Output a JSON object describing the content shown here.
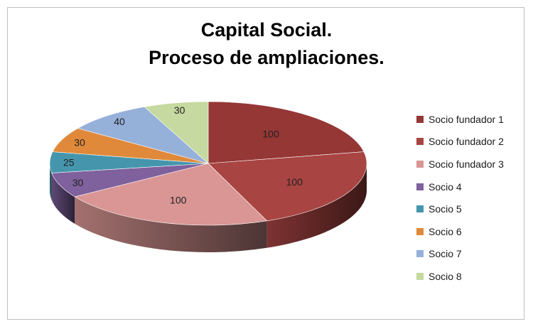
{
  "chart_data": {
    "type": "pie",
    "title_line1": "Capital Social.",
    "title_line2": "Proceso de ampliaciones.",
    "categories": [
      "Socio fundador 1",
      "Socio fundador 2",
      "Socio fundador 3",
      "Socio 4",
      "Socio 5",
      "Socio 6",
      "Socio 7",
      "Socio 8"
    ],
    "values": [
      100,
      100,
      100,
      30,
      25,
      30,
      40,
      30
    ],
    "colors": [
      "#953735",
      "#A84442",
      "#D99694",
      "#7F619D",
      "#4596AC",
      "#E0893A",
      "#95B0D9",
      "#C6D9A0"
    ],
    "legend_position": "right",
    "view": "3d-tilted"
  }
}
